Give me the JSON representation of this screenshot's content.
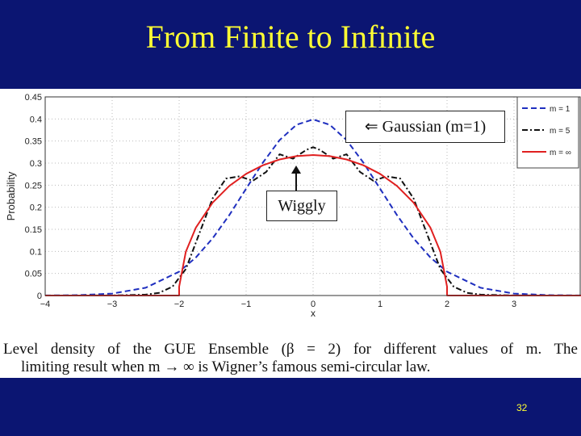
{
  "slide": {
    "title": "From Finite to Infinite",
    "page_number": "32",
    "caption_line1": "Level density of the GUE Ensemble (β = 2) for different values of m. The",
    "caption_line2": "limiting result when m → ∞ is Wigner’s famous semi-circular law.",
    "annotation_gaussian": "⇐ Gaussian (m=1)",
    "annotation_wiggly": "Wiggly"
  },
  "chart_data": {
    "type": "line",
    "title": "",
    "xlabel": "x",
    "ylabel": "Probability",
    "xlim": [
      -4,
      4
    ],
    "ylim": [
      0,
      0.45
    ],
    "xticks": [
      -4,
      -3,
      -2,
      -1,
      0,
      1,
      2,
      3
    ],
    "yticks": [
      0,
      0.05,
      0.1,
      0.15,
      0.2,
      0.25,
      0.3,
      0.35,
      0.4,
      0.45
    ],
    "grid": true,
    "legend_position": "top-right",
    "series": [
      {
        "name": "m = 1",
        "style": "dashed",
        "color": "#1f2fbf",
        "x": [
          -4,
          -3.5,
          -3,
          -2.5,
          -2,
          -1.75,
          -1.5,
          -1.25,
          -1,
          -0.75,
          -0.5,
          -0.25,
          0,
          0.25,
          0.5,
          0.75,
          1,
          1.25,
          1.5,
          1.75,
          2,
          2.5,
          3,
          3.5,
          4
        ],
        "y": [
          0.0001,
          0.0009,
          0.0044,
          0.0175,
          0.054,
          0.0863,
          0.1295,
          0.1826,
          0.242,
          0.3011,
          0.3521,
          0.3867,
          0.3989,
          0.3867,
          0.3521,
          0.3011,
          0.242,
          0.1826,
          0.1295,
          0.0863,
          0.054,
          0.0175,
          0.0044,
          0.0009,
          0.0001
        ]
      },
      {
        "name": "m = 5",
        "style": "dash-dot",
        "color": "#111111",
        "x": [
          -4,
          -3,
          -2.5,
          -2.3,
          -2.1,
          -1.9,
          -1.7,
          -1.5,
          -1.3,
          -1.1,
          -0.9,
          -0.7,
          -0.5,
          -0.3,
          -0.1,
          0,
          0.1,
          0.3,
          0.5,
          0.7,
          0.9,
          1.1,
          1.3,
          1.5,
          1.7,
          1.9,
          2.1,
          2.3,
          2.5,
          3,
          4
        ],
        "y": [
          0,
          0.0001,
          0.002,
          0.006,
          0.02,
          0.06,
          0.14,
          0.22,
          0.265,
          0.27,
          0.26,
          0.28,
          0.32,
          0.31,
          0.33,
          0.336,
          0.33,
          0.31,
          0.32,
          0.28,
          0.26,
          0.27,
          0.265,
          0.22,
          0.14,
          0.06,
          0.02,
          0.006,
          0.002,
          0.0001,
          0
        ]
      },
      {
        "name": "m = ∞",
        "style": "solid",
        "color": "#e02020",
        "x": [
          -4,
          -2,
          -2,
          -1.9,
          -1.75,
          -1.5,
          -1.25,
          -1,
          -0.75,
          -0.5,
          -0.25,
          0,
          0.25,
          0.5,
          0.75,
          1,
          1.25,
          1.5,
          1.75,
          1.9,
          2,
          2,
          4
        ],
        "y": [
          0,
          0,
          0.02,
          0.0994,
          0.1541,
          0.2106,
          0.2485,
          0.2757,
          0.2951,
          0.3082,
          0.3158,
          0.3183,
          0.3158,
          0.3082,
          0.2951,
          0.2757,
          0.2485,
          0.2106,
          0.1541,
          0.0994,
          0.02,
          0,
          0
        ]
      }
    ]
  }
}
